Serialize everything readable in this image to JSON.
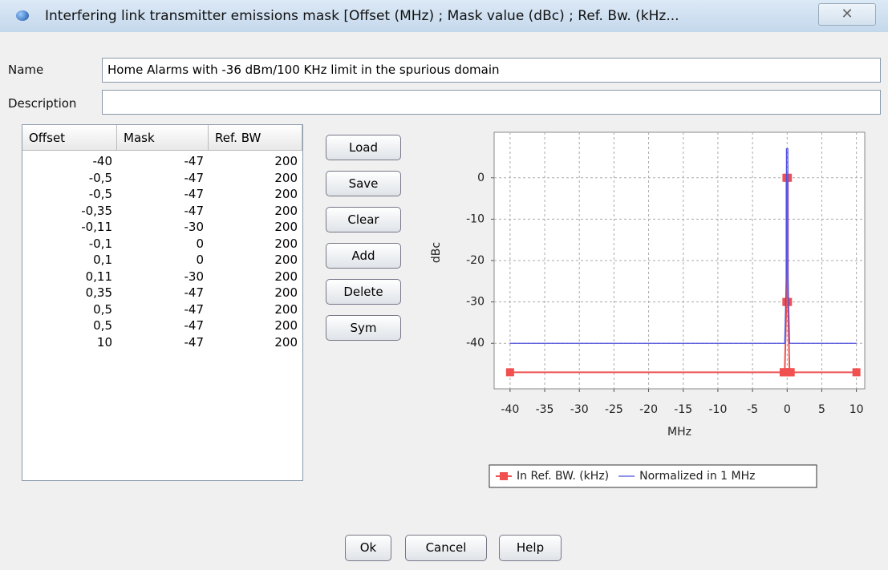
{
  "window": {
    "title": "Interfering link transmitter emissions mask [Offset (MHz) ; Mask value (dBc) ; Ref. Bw. (kHz..."
  },
  "form": {
    "name_label": "Name",
    "name_value": "Home Alarms with -36 dBm/100 KHz limit in the spurious domain",
    "description_label": "Description"
  },
  "table": {
    "columns": [
      "Offset",
      "Mask",
      "Ref. BW"
    ],
    "rows": [
      [
        "-40",
        "-47",
        "200"
      ],
      [
        "-0,5",
        "-47",
        "200"
      ],
      [
        "-0,5",
        "-47",
        "200"
      ],
      [
        "-0,35",
        "-47",
        "200"
      ],
      [
        "-0,11",
        "-30",
        "200"
      ],
      [
        "-0,1",
        "0",
        "200"
      ],
      [
        "0,1",
        "0",
        "200"
      ],
      [
        "0,11",
        "-30",
        "200"
      ],
      [
        "0,35",
        "-47",
        "200"
      ],
      [
        "0,5",
        "-47",
        "200"
      ],
      [
        "0,5",
        "-47",
        "200"
      ],
      [
        "10",
        "-47",
        "200"
      ]
    ]
  },
  "buttons": [
    "Load",
    "Save",
    "Clear",
    "Add",
    "Delete",
    "Sym"
  ],
  "dialog_buttons": [
    "Ok",
    "Cancel",
    "Help"
  ],
  "chart_data": {
    "type": "line",
    "x_label": "MHz",
    "y_label": "dBc",
    "x": [
      -40,
      -0.5,
      -0.5,
      -0.35,
      -0.11,
      -0.1,
      0.1,
      0.11,
      0.35,
      0.5,
      0.5,
      10
    ],
    "series": [
      {
        "name": "In Ref. BW. (kHz)",
        "color": "#f05050",
        "marker": "square",
        "values": [
          -47,
          -47,
          -47,
          -47,
          -30,
          0,
          0,
          -30,
          -47,
          -47,
          -47,
          -47
        ]
      },
      {
        "name": "Normalized in 1 MHz",
        "color": "#5050e0",
        "values": [
          -40,
          -40,
          -40,
          -40,
          -23,
          7,
          7,
          -23,
          -40,
          -40,
          -40,
          -40
        ]
      }
    ],
    "xlim": [
      -42.3,
      11.2
    ],
    "ylim": [
      -51,
      11
    ],
    "xticks": [
      -40,
      -35,
      -30,
      -25,
      -20,
      -15,
      -10,
      -5,
      0,
      5,
      10
    ],
    "yticks": [
      0,
      -10,
      -20,
      -30,
      -40
    ],
    "grid": true,
    "legend": "bottom"
  }
}
